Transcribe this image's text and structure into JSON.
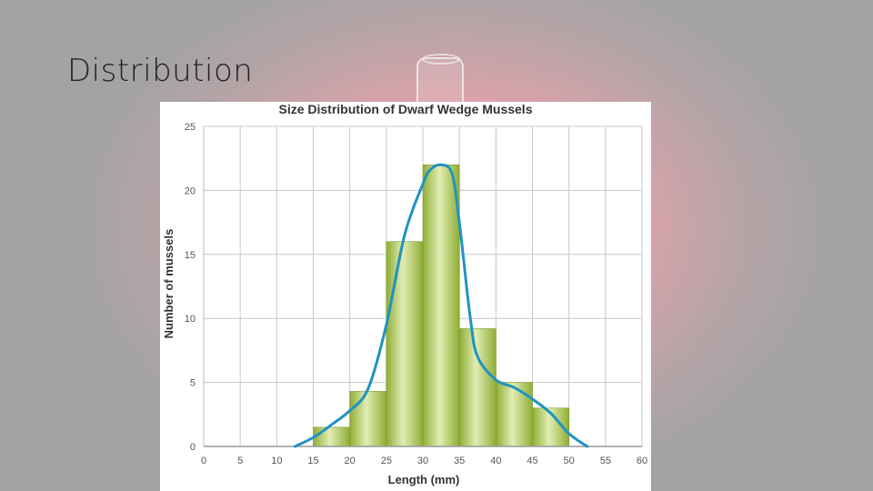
{
  "slide": {
    "title": "Distribution"
  },
  "chart_data": {
    "type": "bar",
    "title": "Size Distribution of Dwarf Wedge Mussels",
    "xlabel": "Length (mm)",
    "ylabel": "Number of mussels",
    "x_ticks": [
      0,
      5,
      10,
      15,
      20,
      25,
      30,
      35,
      40,
      45,
      50,
      55,
      60
    ],
    "y_ticks": [
      0,
      5,
      10,
      15,
      20,
      25
    ],
    "xlim": [
      0,
      60
    ],
    "ylim": [
      0,
      25
    ],
    "bin_width": 5,
    "bins": [
      {
        "start": 15,
        "end": 20,
        "value": 1.5
      },
      {
        "start": 20,
        "end": 25,
        "value": 4.3
      },
      {
        "start": 25,
        "end": 30,
        "value": 16
      },
      {
        "start": 30,
        "end": 35,
        "value": 22
      },
      {
        "start": 35,
        "end": 40,
        "value": 9.2
      },
      {
        "start": 40,
        "end": 45,
        "value": 5
      },
      {
        "start": 45,
        "end": 50,
        "value": 3
      }
    ],
    "curve": {
      "x": [
        12.5,
        15,
        17.5,
        20,
        22.5,
        25,
        27.5,
        30,
        31,
        32.5,
        34,
        35,
        36.5,
        37.5,
        40,
        42.5,
        45,
        47.5,
        50,
        52.5
      ],
      "y": [
        0,
        0.7,
        1.7,
        2.8,
        4.5,
        9.5,
        16.5,
        20.5,
        21.6,
        22,
        21.3,
        17.5,
        10,
        7,
        5.2,
        4.6,
        3.7,
        2.6,
        1,
        0
      ]
    },
    "grid": true,
    "colors": {
      "bar": "#a6c14c",
      "bar_highlight": "#e2edb4",
      "curve": "#1f93c2",
      "grid": "#c8c8c8"
    }
  }
}
